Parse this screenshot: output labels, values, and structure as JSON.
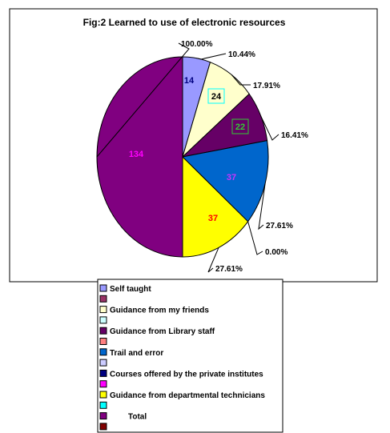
{
  "chart_data": {
    "type": "pie",
    "title": "Fig:2 Learned to use of electronic resources",
    "slices": [
      {
        "label": "Self taught",
        "value": 14,
        "value_label": "14",
        "percent_label": "10.44%",
        "color": "#9999ff",
        "label_color": "#000080"
      },
      {
        "label": "Guidance from my friends",
        "value": 24,
        "value_label": "24",
        "percent_label": "17.91%",
        "color": "#ffffcc",
        "label_color": "#000000"
      },
      {
        "label": "Guidance from Library staff",
        "value": 22,
        "value_label": "22",
        "percent_label": "16.41%",
        "color": "#660066",
        "label_color": "#33cc33"
      },
      {
        "label": "Trail and error",
        "value": 37,
        "value_label": "37",
        "percent_label": "27.61%",
        "color": "#0066cc",
        "label_color": "#cc33ff"
      },
      {
        "label": "Courses offered by the private institutes",
        "value": 0,
        "value_label": "",
        "percent_label": "0.00%",
        "color": "#000080",
        "label_color": "#000000"
      },
      {
        "label": "Guidance from  departmental technicians",
        "value": 37,
        "value_label": "37",
        "percent_label": "27.61%",
        "color": "#ffff00",
        "label_color": "#ff0000"
      },
      {
        "label": "Total",
        "value": 134,
        "value_label": "134",
        "percent_label": "100.00%",
        "color": "#800080",
        "label_color": "#ff00ff"
      }
    ],
    "legend": {
      "placement": "bottom",
      "entries": [
        {
          "label": "Self taught",
          "color": "#9999ff"
        },
        {
          "label": "",
          "color": "#993366"
        },
        {
          "label": "Guidance from my friends",
          "color": "#ffffcc"
        },
        {
          "label": "",
          "color": "#ccffff"
        },
        {
          "label": "Guidance from Library staff",
          "color": "#660066"
        },
        {
          "label": "",
          "color": "#ff8080"
        },
        {
          "label": "Trail and error",
          "color": "#0066cc"
        },
        {
          "label": "",
          "color": "#ccccff"
        },
        {
          "label": "Courses offered by the private institutes",
          "color": "#000080"
        },
        {
          "label": "",
          "color": "#ff00ff"
        },
        {
          "label": "Guidance from  departmental technicians",
          "color": "#ffff00"
        },
        {
          "label": "",
          "color": "#00ffff"
        },
        {
          "label": "Total",
          "color": "#800080"
        },
        {
          "label": "",
          "color": "#800000"
        }
      ]
    }
  }
}
